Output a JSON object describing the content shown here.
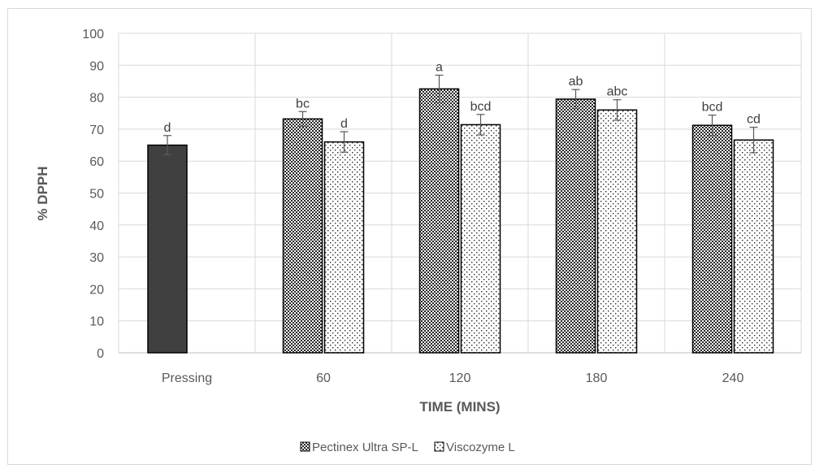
{
  "chart_data": {
    "type": "bar",
    "title": "",
    "xlabel": "TIME (MINS)",
    "ylabel": "% DPPH",
    "ylim": [
      0,
      100
    ],
    "yticks": [
      0,
      10,
      20,
      30,
      40,
      50,
      60,
      70,
      80,
      90,
      100
    ],
    "grid": true,
    "legend_position": "bottom",
    "categories": [
      "Pressing",
      "60",
      "120",
      "180",
      "240"
    ],
    "series": [
      {
        "name": "Pectinex Ultra SP-L",
        "pattern": "crosshatch",
        "values": [
          65,
          73.2,
          82.6,
          79.4,
          71.2
        ],
        "errors": [
          3,
          2.3,
          4.3,
          3,
          3.2
        ],
        "labels": [
          "d",
          "bc",
          "a",
          "ab",
          "bcd"
        ],
        "colors": [
          "#404040",
          null,
          null,
          null,
          null
        ]
      },
      {
        "name": "Viscozyme L",
        "pattern": "dots",
        "values": [
          null,
          66,
          71.4,
          76,
          66.6
        ],
        "errors": [
          null,
          3.2,
          3.2,
          3.2,
          4
        ],
        "labels": [
          null,
          "d",
          "bcd",
          "abc",
          "cd"
        ]
      }
    ]
  }
}
